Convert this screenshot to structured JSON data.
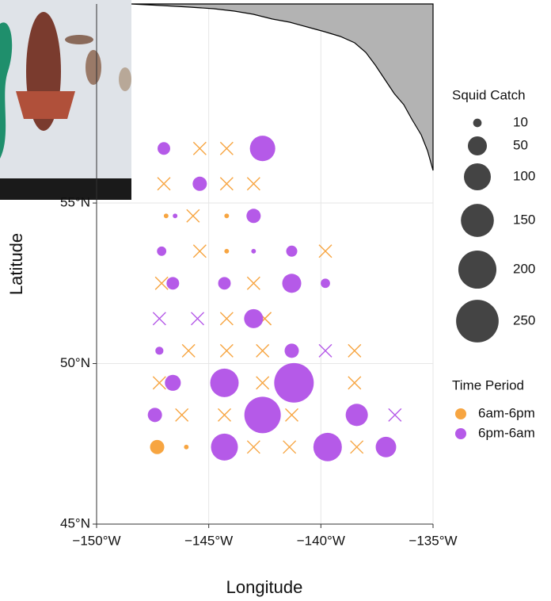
{
  "chart_data": {
    "type": "scatter",
    "x_label": "Longitude",
    "y_label": "Latitude",
    "xlim": [
      -150,
      -135
    ],
    "ylim": [
      45,
      61.2
    ],
    "xticks": [
      {
        "value": -150,
        "label": "−150°W"
      },
      {
        "value": -145,
        "label": "−145°W"
      },
      {
        "value": -140,
        "label": "−140°W"
      },
      {
        "value": -135,
        "label": "−135°W"
      }
    ],
    "yticks": [
      {
        "value": 45,
        "label": "45°N"
      },
      {
        "value": 50,
        "label": "50°N"
      },
      {
        "value": 55,
        "label": "55°N"
      }
    ],
    "grid": true,
    "size_legend": {
      "title": "Squid Catch",
      "values": [
        10,
        50,
        100,
        150,
        200,
        250
      ]
    },
    "color_legend_title": "Time Period",
    "series": [
      {
        "name": "6am-6pm",
        "color": "#f7a541",
        "x": [
          -145.4,
          -144.2,
          -147.0,
          -144.2,
          -143.0,
          -146.9,
          -145.7,
          -144.2,
          -145.4,
          -144.2,
          -139.8,
          -147.1,
          -143.0,
          -144.2,
          -142.5,
          -142.5,
          -145.9,
          -144.2,
          -142.6,
          -141.3,
          -138.5,
          -147.2,
          -142.6,
          -138.5,
          -146.2,
          -144.3,
          -141.3,
          -147.3,
          -146.0,
          -143.0,
          -141.4,
          -138.4
        ],
        "y": [
          56.7,
          56.7,
          55.6,
          55.6,
          55.6,
          54.6,
          54.6,
          54.6,
          53.5,
          53.5,
          53.5,
          52.5,
          52.5,
          51.4,
          51.4,
          51.4,
          50.4,
          50.4,
          50.4,
          49.4,
          49.4,
          49.4,
          49.4,
          50.4,
          48.4,
          48.4,
          48.4,
          47.4,
          47.4,
          47.4,
          47.4,
          47.4
        ],
        "sizes": [
          0,
          0,
          0,
          0,
          0,
          3,
          0,
          3,
          0,
          3,
          0,
          0,
          0,
          0,
          0,
          0,
          0,
          0,
          0,
          0,
          0,
          0,
          0,
          0,
          0,
          0,
          0,
          28,
          3,
          0,
          0,
          0
        ]
      },
      {
        "name": "6pm-6am",
        "color": "#b55ae8",
        "x": [
          -147.0,
          -142.6,
          -145.4,
          -143.0,
          -146.5,
          -147.1,
          -143.0,
          -141.3,
          -146.6,
          -144.3,
          -141.3,
          -139.8,
          -147.2,
          -145.5,
          -143.0,
          -147.2,
          -141.3,
          -139.8,
          -146.6,
          -144.3,
          -141.2,
          -147.4,
          -142.6,
          -138.4,
          -136.7,
          -144.3,
          -139.7,
          -137.1
        ],
        "y": [
          56.7,
          56.7,
          55.6,
          54.6,
          54.6,
          53.5,
          53.5,
          53.5,
          52.5,
          52.5,
          52.5,
          52.5,
          51.4,
          51.4,
          51.4,
          50.4,
          50.4,
          50.4,
          49.4,
          49.4,
          49.4,
          48.4,
          48.4,
          48.4,
          48.4,
          47.4,
          47.4,
          47.4
        ],
        "sizes": [
          22,
          89,
          28,
          28,
          3,
          12,
          3,
          17,
          22,
          22,
          50,
          12,
          0,
          0,
          50,
          9,
          28,
          0,
          35,
          112,
          216,
          28,
          183,
          68,
          0,
          100,
          112,
          58
        ]
      }
    ]
  }
}
